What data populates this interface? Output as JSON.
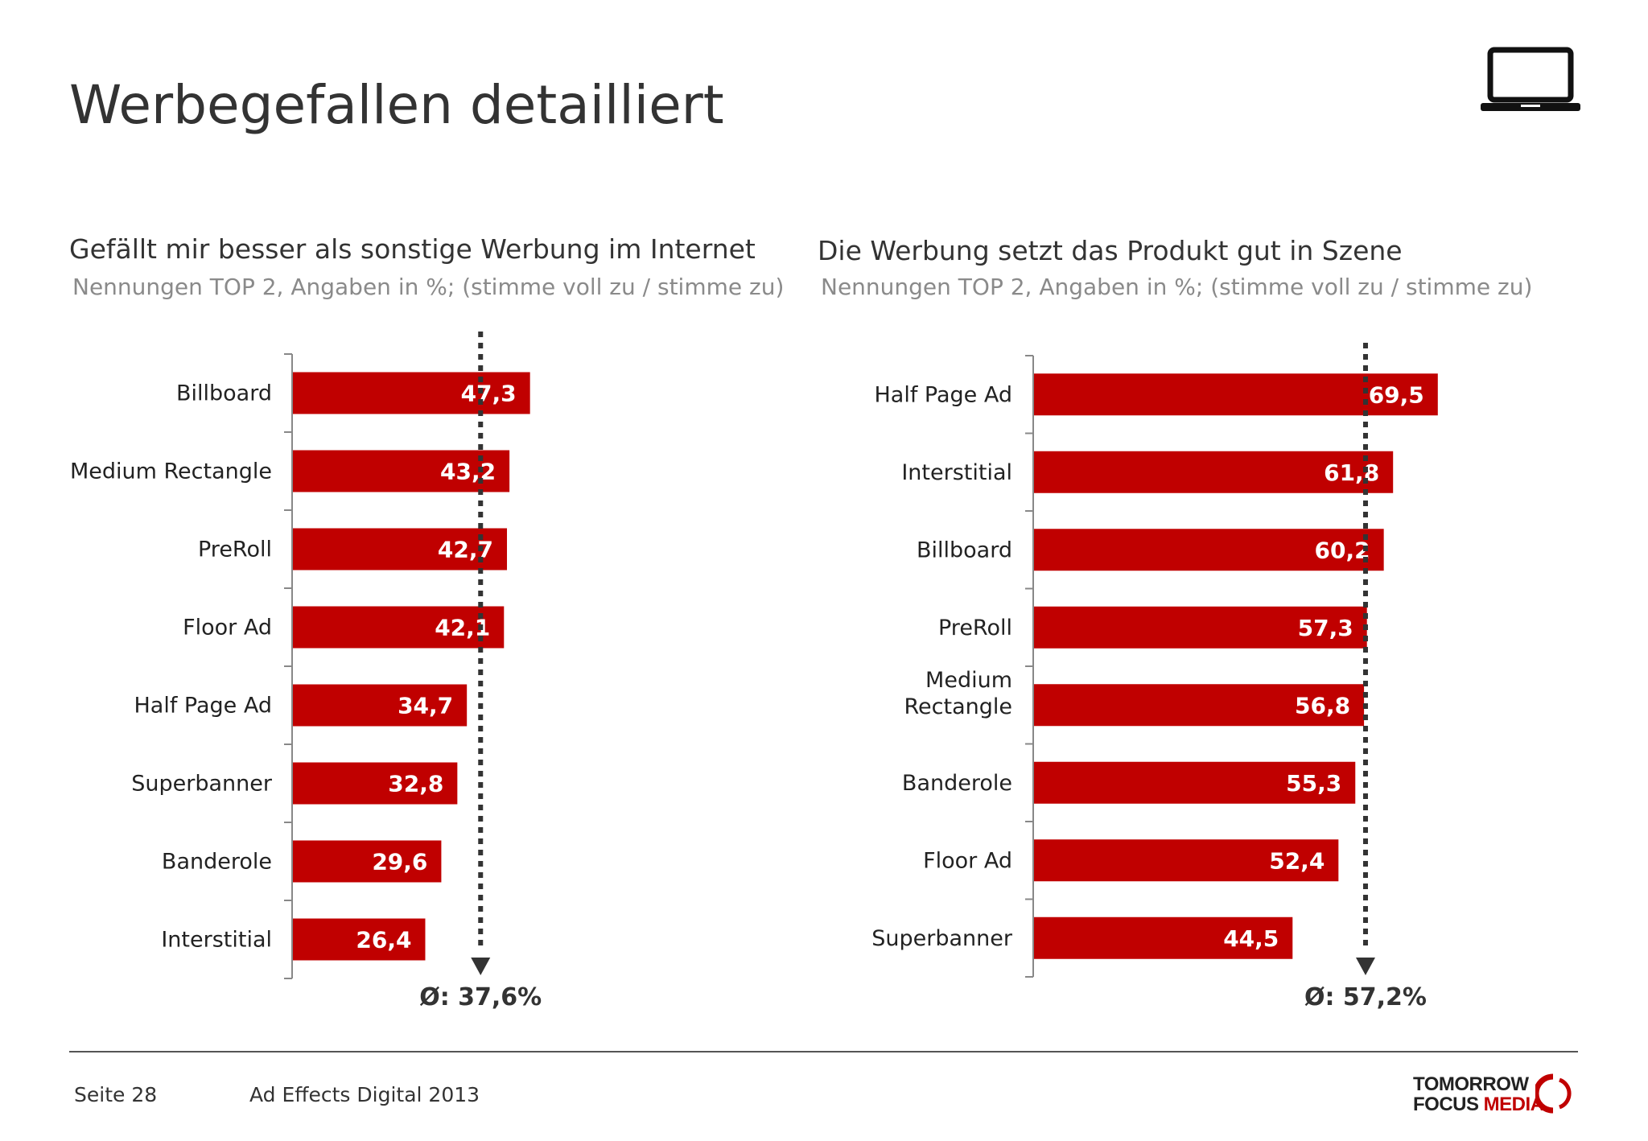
{
  "page": {
    "title": "Werbegefallen detailliert",
    "device_icon": "laptop-icon"
  },
  "colors": {
    "bar": "#c00000",
    "text": "#222222",
    "avg_line": "#333333",
    "axis": "#888888"
  },
  "chart_data": [
    {
      "type": "bar",
      "orientation": "horizontal",
      "title": "Gefällt mir besser als sonstige Werbung im Internet",
      "subtitle": "Nennungen TOP 2, Angaben in %; (stimme voll zu / stimme zu)",
      "categories": [
        "Billboard",
        "Medium Rectangle",
        "PreRoll",
        "Floor Ad",
        "Half Page Ad",
        "Superbanner",
        "Banderole",
        "Interstitial"
      ],
      "values": [
        47.3,
        43.2,
        42.7,
        42.1,
        34.7,
        32.8,
        29.6,
        26.4
      ],
      "value_labels": [
        "47,3",
        "43,2",
        "42,7",
        "42,1",
        "34,7",
        "32,8",
        "29,6",
        "26,4"
      ],
      "average": 37.6,
      "average_label": "Ø: 37,6%",
      "xlim": [
        0,
        100
      ]
    },
    {
      "type": "bar",
      "orientation": "horizontal",
      "title": "Die Werbung setzt das Produkt gut in Szene",
      "subtitle": "Nennungen TOP 2, Angaben in %; (stimme voll zu / stimme zu)",
      "categories": [
        "Half Page Ad",
        "Interstitial",
        "Billboard",
        "PreRoll",
        "Medium Rectangle",
        "Banderole",
        "Floor Ad",
        "Superbanner"
      ],
      "values": [
        69.5,
        61.8,
        60.2,
        57.3,
        56.8,
        55.3,
        52.4,
        44.5
      ],
      "value_labels": [
        "69,5",
        "61,8",
        "60,2",
        "57,3",
        "56,8",
        "55,3",
        "52,4",
        "44,5"
      ],
      "average": 57.2,
      "average_label": "Ø: 57,2%",
      "xlim": [
        0,
        100
      ]
    }
  ],
  "footer": {
    "page_label": "Seite 28",
    "study_label": "Ad Effects Digital 2013",
    "logo_line1": "TOMORROW",
    "logo_line2_a": "FOCUS",
    "logo_line2_b": "MEDIA"
  }
}
